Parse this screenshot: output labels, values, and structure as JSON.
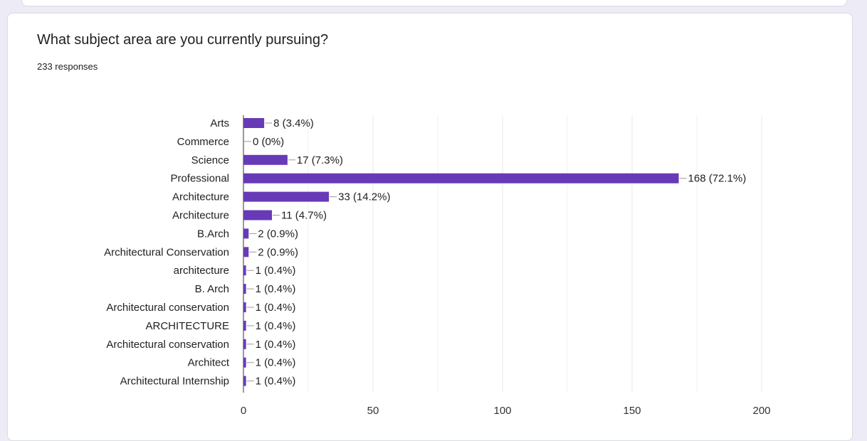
{
  "question": {
    "title": "What subject area are you currently pursuing?",
    "response_count": "233 responses"
  },
  "colors": {
    "bar": "#673ab7",
    "grid": "#e8e8e8",
    "axis": "#333333"
  },
  "chart_data": {
    "type": "bar",
    "orientation": "horizontal",
    "categories": [
      "Arts",
      "Commerce",
      "Science",
      "Professional",
      "Architecture",
      "Architecture",
      "B.Arch",
      "Architectural Conservation",
      "architecture",
      "B. Arch",
      "Architectural conservation",
      "ARCHITECTURE",
      "Architectural conservation",
      "Architect",
      "Architectural Internship"
    ],
    "values": [
      8,
      0,
      17,
      168,
      33,
      11,
      2,
      2,
      1,
      1,
      1,
      1,
      1,
      1,
      1
    ],
    "value_labels": [
      "8 (3.4%)",
      "0 (0%)",
      "17 (7.3%)",
      "168 (72.1%)",
      "33 (14.2%)",
      "11 (4.7%)",
      "2 (0.9%)",
      "2 (0.9%)",
      "1 (0.4%)",
      "1 (0.4%)",
      "1 (0.4%)",
      "1 (0.4%)",
      "1 (0.4%)",
      "1 (0.4%)",
      "1 (0.4%)"
    ],
    "xlim": [
      0,
      200
    ],
    "xticks": [
      0,
      50,
      100,
      150,
      200
    ],
    "grid": true
  }
}
